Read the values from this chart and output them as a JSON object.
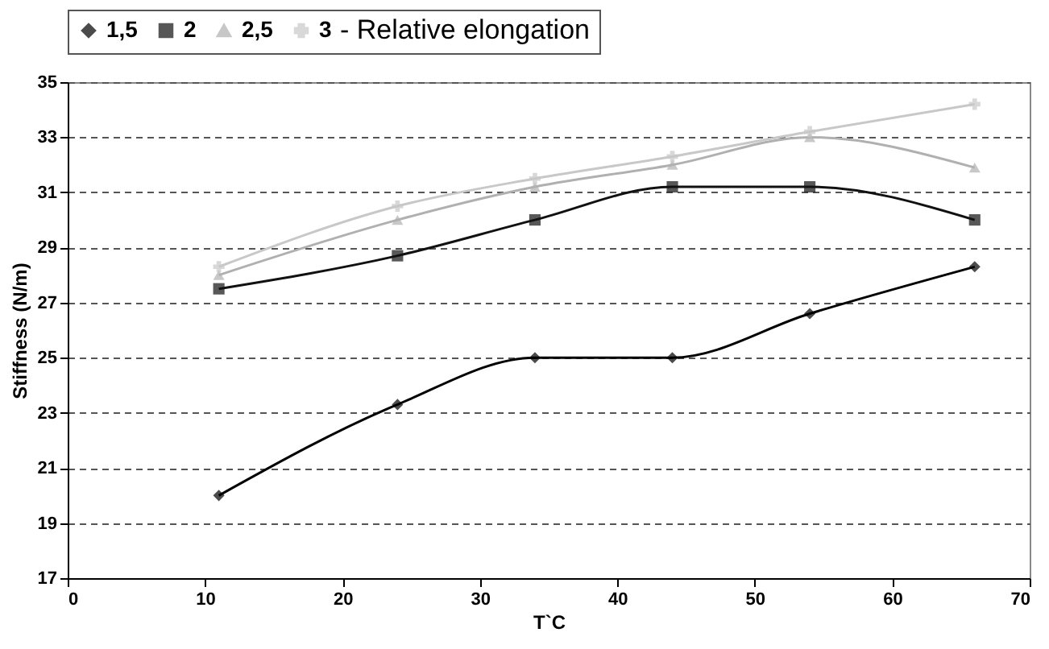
{
  "chart_data": {
    "type": "line",
    "xlabel": "T`C",
    "ylabel": "Stiffness (N/m)",
    "legend_title": "- Relative elongation",
    "x": [
      11,
      24,
      34,
      44,
      54,
      66
    ],
    "series": [
      {
        "name": "1,5",
        "color": "#000000",
        "marker": "diamond",
        "values": [
          20,
          23.3,
          25,
          25,
          26.6,
          28.3
        ]
      },
      {
        "name": "2",
        "color": "#111111",
        "marker": "square",
        "values": [
          27.5,
          28.7,
          30,
          31.2,
          31.2,
          30
        ]
      },
      {
        "name": "2,5",
        "color": "#b0b0b0",
        "marker": "triangle",
        "values": [
          28.0,
          30.0,
          31.2,
          32.0,
          33.0,
          31.9
        ]
      },
      {
        "name": "3",
        "color": "#c8c8c8",
        "marker": "cross",
        "values": [
          28.3,
          30.5,
          31.5,
          32.3,
          33.2,
          34.2
        ]
      }
    ],
    "xlim": [
      0,
      70
    ],
    "xticks": [
      0,
      10,
      20,
      30,
      40,
      50,
      60,
      70
    ],
    "ylim": [
      17,
      35
    ],
    "yticks": [
      17,
      19,
      21,
      23,
      25,
      27,
      29,
      31,
      33,
      35
    ],
    "grid": "y",
    "legend": "top",
    "line_style": "solid"
  }
}
